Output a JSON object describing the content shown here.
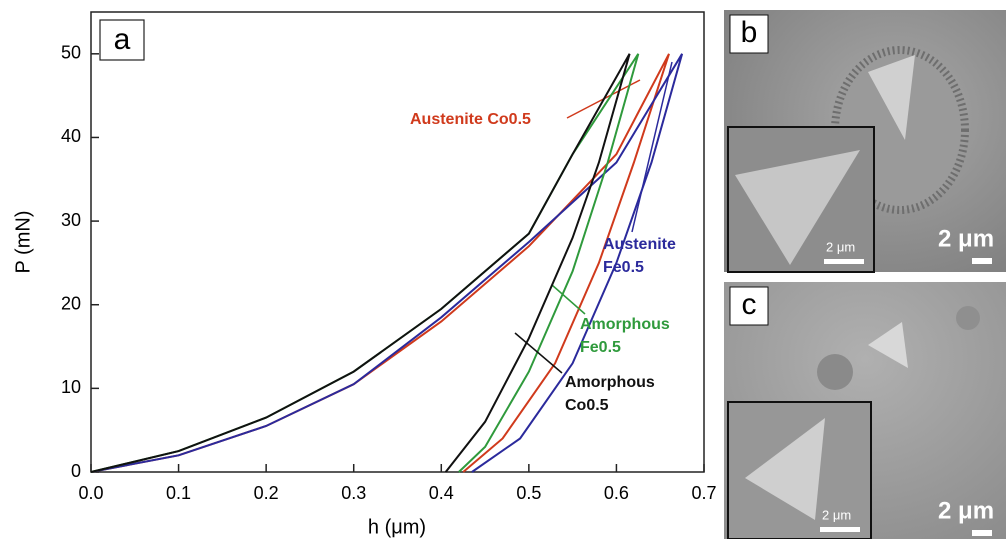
{
  "chart_data": {
    "type": "line",
    "panel_label": "a",
    "x_label": "h (μm)",
    "y_label": "P (mN)",
    "xlim": [
      0,
      0.7
    ],
    "ylim": [
      0,
      55
    ],
    "xticks": [
      {
        "value": 0,
        "label": "0.0"
      },
      0.1,
      0.2,
      0.3,
      0.4,
      0.5,
      0.6,
      0.7
    ],
    "yticks": [
      0,
      10,
      20,
      30,
      40,
      50
    ],
    "series": [
      {
        "name": "Austenite Co0.5",
        "color": "#d03a1c",
        "x": [
          0,
          0.1,
          0.2,
          0.3,
          0.4,
          0.5,
          0.6,
          0.66,
          0.62,
          0.58,
          0.53,
          0.47,
          0.425
        ],
        "values": [
          0,
          2,
          5.5,
          10.5,
          18,
          27,
          38,
          50,
          37,
          25,
          13,
          4,
          0
        ]
      },
      {
        "name": "Austenite Fe0.5",
        "color": "#2b2a9c",
        "x": [
          0,
          0.1,
          0.2,
          0.3,
          0.4,
          0.5,
          0.6,
          0.675,
          0.64,
          0.6,
          0.55,
          0.49,
          0.435
        ],
        "values": [
          0,
          2,
          5.5,
          10.5,
          18.5,
          27.5,
          37,
          50,
          37,
          25,
          13,
          4,
          0
        ]
      },
      {
        "name": "Amorphous Fe0.5",
        "color": "#2f9a3c",
        "x": [
          0,
          0.1,
          0.2,
          0.3,
          0.4,
          0.5,
          0.55,
          0.625,
          0.59,
          0.55,
          0.5,
          0.45,
          0.42
        ],
        "values": [
          0,
          2.5,
          6.5,
          12,
          19.5,
          28.5,
          38,
          50,
          37,
          24,
          12,
          3,
          0
        ]
      },
      {
        "name": "Amorphous Co0.5",
        "color": "#111111",
        "x": [
          0,
          0.1,
          0.2,
          0.3,
          0.4,
          0.5,
          0.55,
          0.615,
          0.58,
          0.55,
          0.5,
          0.45,
          0.405
        ],
        "values": [
          0,
          2.5,
          6.5,
          12,
          19.5,
          28.5,
          38,
          50,
          37,
          28,
          16,
          6,
          0
        ]
      }
    ]
  },
  "panels": [
    {
      "label": "b",
      "scale": "2 μm",
      "inset_scale": "2 μm"
    },
    {
      "label": "c",
      "scale": "2 μm",
      "inset_scale": "2 μm"
    }
  ]
}
